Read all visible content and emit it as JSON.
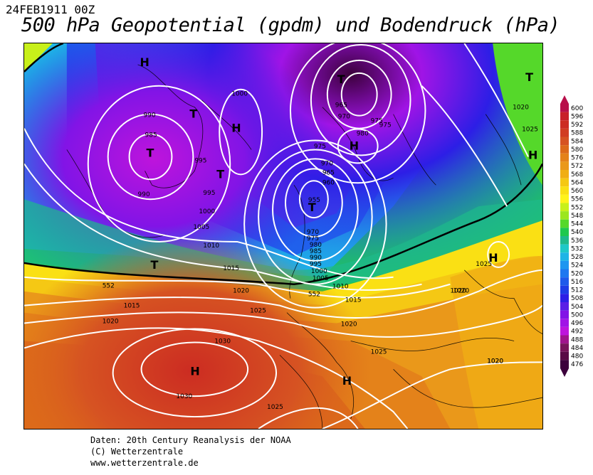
{
  "header": {
    "date": "24FEB1911 00Z",
    "title": "500 hPa Geopotential (gpdm) und Bodendruck (hPa)"
  },
  "legend": {
    "labels": [
      "600",
      "596",
      "592",
      "588",
      "584",
      "580",
      "576",
      "572",
      "568",
      "564",
      "560",
      "556",
      "552",
      "548",
      "544",
      "540",
      "536",
      "532",
      "528",
      "524",
      "520",
      "516",
      "512",
      "508",
      "504",
      "500",
      "496",
      "492",
      "488",
      "484",
      "480",
      "476"
    ],
    "colors": [
      "#b80f4a",
      "#c81f2a",
      "#cc2c22",
      "#d13d22",
      "#d65322",
      "#dc6a1a",
      "#e4821a",
      "#ea981a",
      "#f0ae14",
      "#f5c814",
      "#fae014",
      "#fff31a",
      "#c8f01a",
      "#9ce61e",
      "#55d82a",
      "#1ec84e",
      "#1eb98c",
      "#1ec8c8",
      "#1eb4e6",
      "#1e96f0",
      "#1e78f0",
      "#1e5aeb",
      "#1e3ce6",
      "#2d1ee6",
      "#5a1ee6",
      "#8214e6",
      "#a014e6",
      "#be14dc",
      "#a0148c",
      "#78145a",
      "#5a0a46",
      "#3c003c"
    ]
  },
  "map_symbols": {
    "high": "H",
    "low": "T"
  },
  "isobar_labels": [
    "1000",
    "990",
    "985",
    "995",
    "995",
    "990",
    "1000",
    "1005",
    "1010",
    "1015",
    "1020",
    "1015",
    "1020",
    "1025",
    "1030",
    "1030",
    "1025",
    "1025",
    "1020",
    "1020",
    "965",
    "970",
    "975",
    "975",
    "980",
    "975",
    "970",
    "965",
    "960",
    "955",
    "970",
    "975",
    "980",
    "985",
    "990",
    "995",
    "1000",
    "1005",
    "1010",
    "1015",
    "1020",
    "1025",
    "1020",
    "1025",
    "1020",
    "1020"
  ],
  "height_labels": [
    "552",
    "552"
  ],
  "footer": {
    "line1": "Daten: 20th Century Reanalysis der NOAA",
    "line2": "(C) Wetterzentrale",
    "line3": "www.wetterzentrale.de"
  }
}
